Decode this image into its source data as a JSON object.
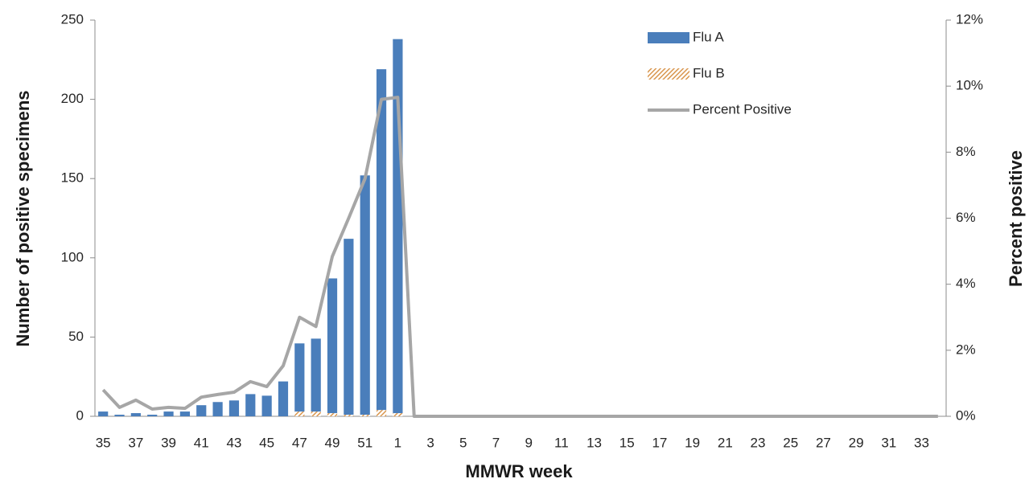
{
  "chart_data": {
    "type": "bar",
    "x_label": "MMWR week",
    "y_label": "Number of positive specimens",
    "y2_label": "Percent positive",
    "categories": [
      "35",
      null,
      "37",
      null,
      "39",
      null,
      "41",
      null,
      "43",
      null,
      "45",
      null,
      "47",
      null,
      "49",
      null,
      "51",
      null,
      "1",
      null,
      "3",
      null,
      "5",
      null,
      "7",
      null,
      "9",
      null,
      "11",
      null,
      "13",
      null,
      "15",
      null,
      "17",
      null,
      "19",
      null,
      "21",
      null,
      "23",
      null,
      "25",
      null,
      "27",
      null,
      "29",
      null,
      "31",
      null,
      "33",
      null
    ],
    "series": [
      {
        "name": "Flu A",
        "color": "#4a7ebb",
        "values": [
          3,
          1,
          2,
          1,
          3,
          3,
          7,
          9,
          10,
          14,
          13,
          22,
          43,
          46,
          85,
          111,
          151,
          215,
          236,
          0,
          0,
          0,
          0,
          0,
          0,
          0,
          0,
          0,
          0,
          0,
          0,
          0,
          0,
          0,
          0,
          0,
          0,
          0,
          0,
          0,
          0,
          0,
          0,
          0,
          0,
          0,
          0,
          0,
          0,
          0,
          0,
          0
        ]
      },
      {
        "name": "Flu B",
        "color": "#d9964e",
        "pattern": "hatch",
        "values": [
          0,
          0,
          0,
          0,
          0,
          0,
          0,
          0,
          0,
          0,
          0,
          0,
          3,
          3,
          2,
          1,
          1,
          4,
          2,
          0,
          0,
          0,
          0,
          0,
          0,
          0,
          0,
          0,
          0,
          0,
          0,
          0,
          0,
          0,
          0,
          0,
          0,
          0,
          0,
          0,
          0,
          0,
          0,
          0,
          0,
          0,
          0,
          0,
          0,
          0,
          0,
          0
        ]
      },
      {
        "name": "Percent Positive",
        "type": "line",
        "axis": "y2",
        "color": "#a6a6a6",
        "values": [
          0.8,
          0.27,
          0.49,
          0.22,
          0.27,
          0.24,
          0.58,
          0.66,
          0.73,
          1.05,
          0.9,
          1.53,
          3.0,
          2.72,
          4.84,
          6.0,
          7.2,
          9.6,
          9.66,
          0,
          0,
          0,
          0,
          0,
          0,
          0,
          0,
          0,
          0,
          0,
          0,
          0,
          0,
          0,
          0,
          0,
          0,
          0,
          0,
          0,
          0,
          0,
          0,
          0,
          0,
          0,
          0,
          0,
          0,
          0,
          0,
          0
        ]
      }
    ],
    "ylim": [
      0,
      250
    ],
    "yticks": [
      0,
      50,
      100,
      150,
      200,
      250
    ],
    "y2lim": [
      0,
      12
    ],
    "y2ticks": [
      {
        "value": 0,
        "label": "0%"
      },
      {
        "value": 2,
        "label": "2%"
      },
      {
        "value": 4,
        "label": "4%"
      },
      {
        "value": 6,
        "label": "6%"
      },
      {
        "value": 8,
        "label": "8%"
      },
      {
        "value": 10,
        "label": "10%"
      },
      {
        "value": 12,
        "label": "12%"
      }
    ],
    "grid": false,
    "legend": "top-right"
  }
}
